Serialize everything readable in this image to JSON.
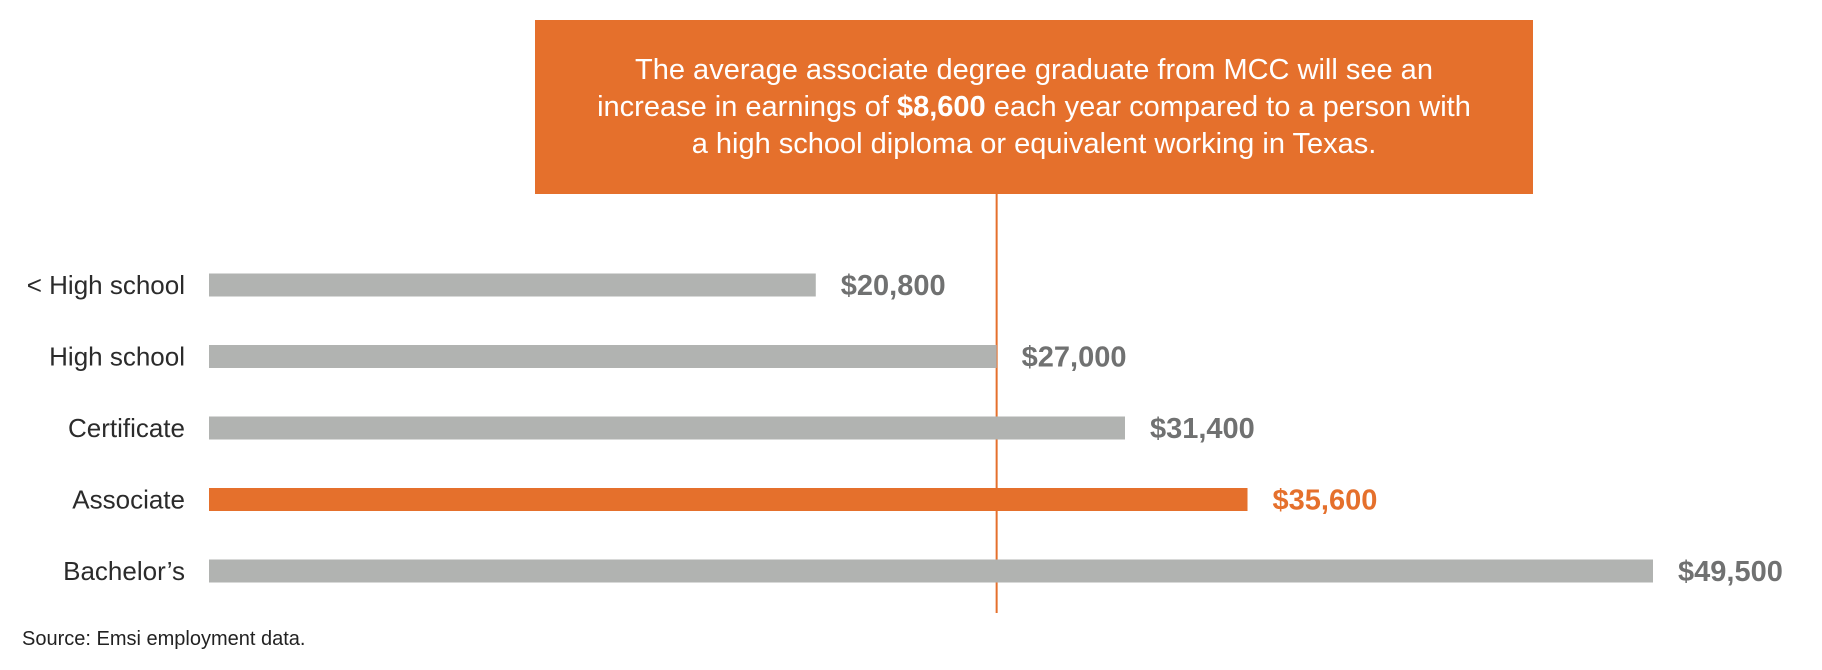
{
  "callout": {
    "text_before": "The average associate degree graduate from MCC will see an increase in earnings of ",
    "highlight": "$8,600",
    "text_after": " each year compared to a person with a high school diploma or equivalent working in Texas."
  },
  "source": "Source: Emsi employment data.",
  "colors": {
    "bar": "#b1b3b1",
    "highlight_bar": "#e5702c",
    "value_text": "#707171",
    "highlight_text": "#e5702c",
    "callout_bg": "#e5702c"
  },
  "chart_data": {
    "type": "bar",
    "orientation": "horizontal",
    "categories": [
      "< High school",
      "High school",
      "Certificate",
      "Associate",
      "Bachelor’s"
    ],
    "values": [
      20800,
      27000,
      31400,
      35600,
      49500
    ],
    "value_labels": [
      "$20,800",
      "$27,000",
      "$31,400",
      "$35,600",
      "$49,500"
    ],
    "highlight_category": "Associate",
    "reference_value": 27000,
    "xlim": [
      0,
      49500
    ],
    "grid": false,
    "legend": "none"
  }
}
